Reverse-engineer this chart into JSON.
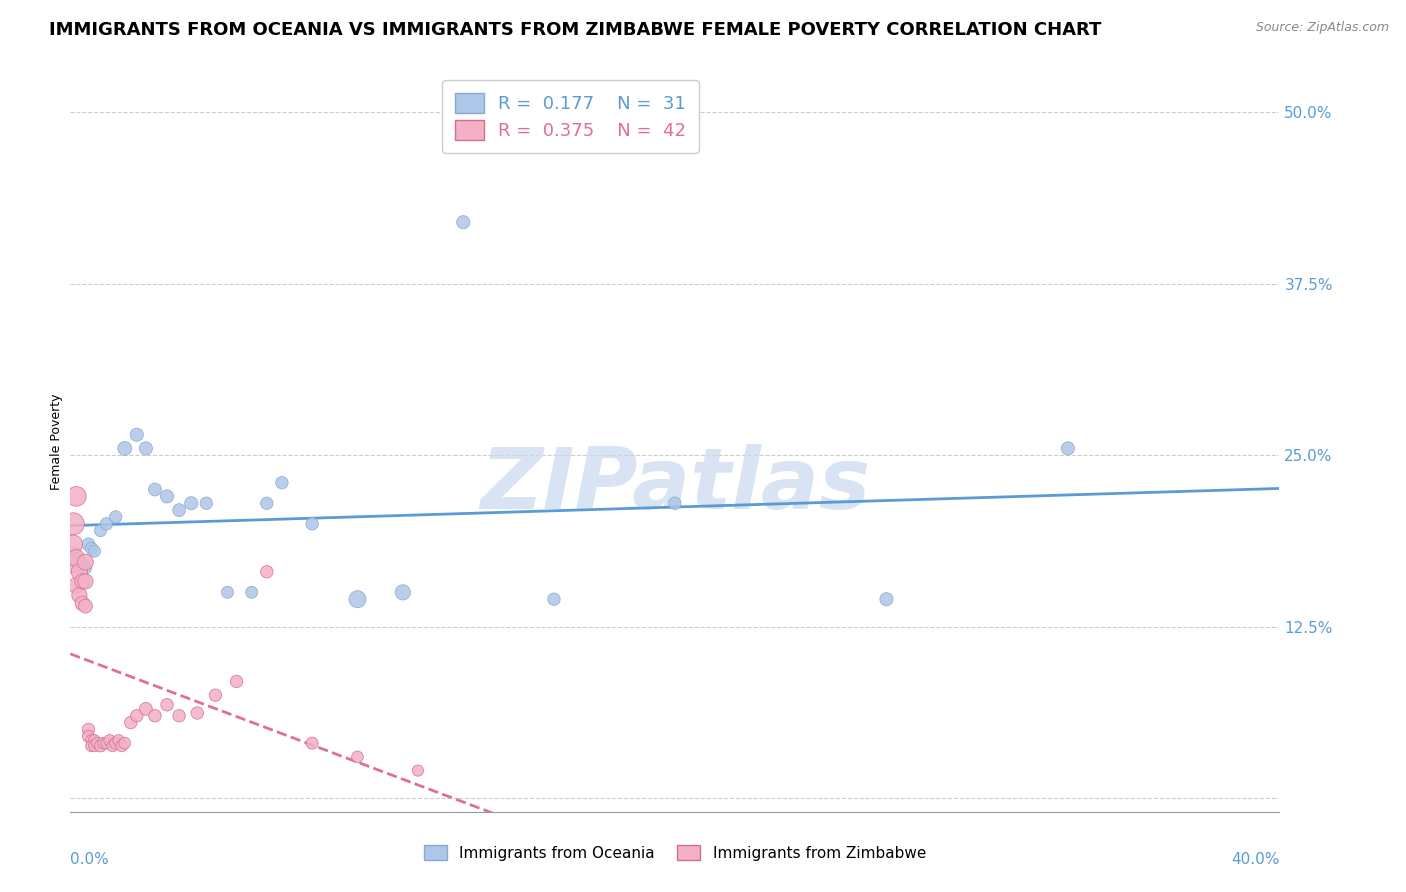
{
  "title": "IMMIGRANTS FROM OCEANIA VS IMMIGRANTS FROM ZIMBABWE FEMALE POVERTY CORRELATION CHART",
  "source": "Source: ZipAtlas.com",
  "ylabel": "Female Poverty",
  "xlim": [
    0.0,
    0.4
  ],
  "ylim": [
    -0.01,
    0.53
  ],
  "yticks": [
    0.0,
    0.125,
    0.25,
    0.375,
    0.5
  ],
  "ytick_labels": [
    "",
    "12.5%",
    "25.0%",
    "37.5%",
    "50.0%"
  ],
  "background_color": "#ffffff",
  "title_fontsize": 13,
  "axis_label_fontsize": 9,
  "tick_fontsize": 11,
  "watermark_text": "ZIPatlas",
  "series": [
    {
      "name": "Immigrants from Oceania",
      "R": 0.177,
      "N": 31,
      "color": "#aec6e8",
      "edge_color": "#88aacc",
      "trend_color": "#5b9bd5",
      "trend_style": "solid",
      "x": [
        0.001,
        0.002,
        0.003,
        0.004,
        0.005,
        0.006,
        0.007,
        0.008,
        0.01,
        0.012,
        0.015,
        0.018,
        0.022,
        0.025,
        0.028,
        0.032,
        0.036,
        0.04,
        0.045,
        0.052,
        0.06,
        0.065,
        0.07,
        0.08,
        0.095,
        0.11,
        0.13,
        0.16,
        0.2,
        0.27,
        0.33
      ],
      "y": [
        0.178,
        0.175,
        0.172,
        0.17,
        0.168,
        0.185,
        0.182,
        0.18,
        0.195,
        0.2,
        0.205,
        0.255,
        0.265,
        0.255,
        0.225,
        0.22,
        0.21,
        0.215,
        0.215,
        0.15,
        0.15,
        0.215,
        0.23,
        0.2,
        0.145,
        0.15,
        0.42,
        0.145,
        0.215,
        0.145,
        0.255
      ],
      "size": [
        120,
        100,
        90,
        85,
        80,
        85,
        80,
        75,
        75,
        80,
        80,
        100,
        90,
        90,
        85,
        90,
        85,
        90,
        80,
        75,
        75,
        80,
        80,
        80,
        150,
        120,
        90,
        80,
        80,
        90,
        90
      ]
    },
    {
      "name": "Immigrants from Zimbabwe",
      "R": 0.375,
      "N": 42,
      "color": "#f4b0c4",
      "edge_color": "#d07090",
      "trend_color": "#e07090",
      "trend_style": "dashed",
      "x": [
        0.001,
        0.001,
        0.001,
        0.002,
        0.002,
        0.002,
        0.003,
        0.003,
        0.004,
        0.004,
        0.005,
        0.005,
        0.005,
        0.006,
        0.006,
        0.007,
        0.007,
        0.008,
        0.008,
        0.009,
        0.01,
        0.011,
        0.012,
        0.013,
        0.014,
        0.015,
        0.016,
        0.017,
        0.018,
        0.02,
        0.022,
        0.025,
        0.028,
        0.032,
        0.036,
        0.042,
        0.048,
        0.055,
        0.065,
        0.08,
        0.095,
        0.115
      ],
      "y": [
        0.2,
        0.185,
        0.17,
        0.22,
        0.175,
        0.155,
        0.165,
        0.148,
        0.158,
        0.142,
        0.172,
        0.158,
        0.14,
        0.05,
        0.045,
        0.042,
        0.038,
        0.042,
        0.038,
        0.04,
        0.038,
        0.04,
        0.04,
        0.042,
        0.038,
        0.04,
        0.042,
        0.038,
        0.04,
        0.055,
        0.06,
        0.065,
        0.06,
        0.068,
        0.06,
        0.062,
        0.075,
        0.085,
        0.165,
        0.04,
        0.03,
        0.02
      ],
      "size": [
        250,
        180,
        140,
        200,
        150,
        130,
        140,
        120,
        120,
        110,
        130,
        120,
        100,
        80,
        75,
        70,
        70,
        70,
        70,
        70,
        75,
        70,
        70,
        70,
        70,
        75,
        70,
        70,
        70,
        80,
        80,
        85,
        80,
        80,
        80,
        80,
        80,
        80,
        80,
        75,
        70,
        65
      ]
    }
  ]
}
